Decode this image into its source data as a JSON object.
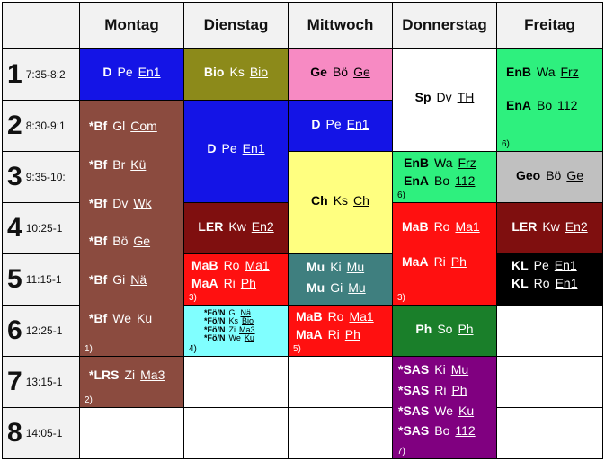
{
  "days": [
    "Montag",
    "Dienstag",
    "Mittwoch",
    "Donnerstag",
    "Freitag"
  ],
  "periods": [
    {
      "num": "1",
      "time": "7:35-8:2"
    },
    {
      "num": "2",
      "time": "8:30-9:1"
    },
    {
      "num": "3",
      "time": "9:35-10:"
    },
    {
      "num": "4",
      "time": "10:25-1"
    },
    {
      "num": "5",
      "time": "11:15-1"
    },
    {
      "num": "6",
      "time": "12:25-1"
    },
    {
      "num": "7",
      "time": "13:15-1"
    },
    {
      "num": "8",
      "time": "14:05-1"
    }
  ],
  "colors": {
    "blue": "#1414e6",
    "olive": "#8c8a1a",
    "pink": "#f78ac3",
    "green": "#2ef07e",
    "brown": "#8b4b3f",
    "yellow": "#ffff80",
    "darkred": "#7f0f0f",
    "red": "#ff1010",
    "teal": "#3f7f7f",
    "cyan": "#80ffff",
    "darkgreen": "#1a7f2a",
    "gray": "#c0c0c0",
    "black": "#000000",
    "purple": "#800080",
    "white": "#ffffff"
  },
  "cells": {
    "mo1": {
      "lines": [
        {
          "subject": "D",
          "teacher": "Pe",
          "room": "En1"
        }
      ]
    },
    "mo2": {
      "lines": [
        {
          "subject": "*Bf",
          "teacher": "Gl",
          "room": "Com"
        },
        {
          "subject": "*Bf",
          "teacher": "Br",
          "room": "Kü"
        },
        {
          "subject": "*Bf",
          "teacher": "Dv",
          "room": "Wk"
        },
        {
          "subject": "*Bf",
          "teacher": "Bö",
          "room": "Ge"
        },
        {
          "subject": "*Bf",
          "teacher": "Gi",
          "room": "Nä"
        },
        {
          "subject": "*Bf",
          "teacher": "We",
          "room": "Ku"
        }
      ],
      "footnote": "1)"
    },
    "mo7": {
      "lines": [
        {
          "subject": "*LRS",
          "teacher": "Zi",
          "room": "Ma3"
        }
      ],
      "footnote": "2)"
    },
    "di1": {
      "lines": [
        {
          "subject": "Bio",
          "teacher": "Ks",
          "room": "Bio"
        }
      ]
    },
    "di2": {
      "lines": [
        {
          "subject": "D",
          "teacher": "Pe",
          "room": "En1"
        }
      ]
    },
    "di4": {
      "lines": [
        {
          "subject": "LER",
          "teacher": "Kw",
          "room": "En2"
        }
      ]
    },
    "di5": {
      "lines": [
        {
          "subject": "MaB",
          "teacher": "Ro",
          "room": "Ma1"
        },
        {
          "subject": "MaA",
          "teacher": "Ri",
          "room": "Ph"
        }
      ],
      "footnote": "3)"
    },
    "di6": {
      "lines": [
        {
          "subject": "*Fö/N",
          "teacher": "Gi",
          "room": "Nä"
        },
        {
          "subject": "*Fö/N",
          "teacher": "Ks",
          "room": "Bio"
        },
        {
          "subject": "*Fö/N",
          "teacher": "Zi",
          "room": "Ma3"
        },
        {
          "subject": "*Fö/N",
          "teacher": "We",
          "room": "Ku"
        }
      ],
      "footnote": "4)"
    },
    "mi1": {
      "lines": [
        {
          "subject": "Ge",
          "teacher": "Bö",
          "room": "Ge"
        }
      ]
    },
    "mi2": {
      "lines": [
        {
          "subject": "D",
          "teacher": "Pe",
          "room": "En1"
        }
      ]
    },
    "mi3": {
      "lines": [
        {
          "subject": "Ch",
          "teacher": "Ks",
          "room": "Ch"
        }
      ]
    },
    "mi5": {
      "lines": [
        {
          "subject": "Mu",
          "teacher": "Ki",
          "room": "Mu"
        },
        {
          "subject": "Mu",
          "teacher": "Gi",
          "room": "Mu"
        }
      ]
    },
    "mi6": {
      "lines": [
        {
          "subject": "MaB",
          "teacher": "Ro",
          "room": "Ma1"
        },
        {
          "subject": "MaA",
          "teacher": "Ri",
          "room": "Ph"
        }
      ],
      "footnote": "5)"
    },
    "do1": {
      "lines": [
        {
          "subject": "Sp",
          "teacher": "Dv",
          "room": "TH"
        }
      ]
    },
    "do3": {
      "lines": [
        {
          "subject": "EnB",
          "teacher": "Wa",
          "room": "Frz"
        },
        {
          "subject": "EnA",
          "teacher": "Bo",
          "room": "112"
        }
      ],
      "footnote": "6)"
    },
    "do4": {
      "lines": [
        {
          "subject": "MaB",
          "teacher": "Ro",
          "room": "Ma1"
        },
        {
          "subject": "MaA",
          "teacher": "Ri",
          "room": "Ph"
        }
      ],
      "footnote": "3)"
    },
    "do6": {
      "lines": [
        {
          "subject": "Ph",
          "teacher": "So",
          "room": "Ph"
        }
      ]
    },
    "do7": {
      "lines": [
        {
          "subject": "*SAS",
          "teacher": "Ki",
          "room": "Mu"
        },
        {
          "subject": "*SAS",
          "teacher": "Ri",
          "room": "Ph"
        },
        {
          "subject": "*SAS",
          "teacher": "We",
          "room": "Ku"
        },
        {
          "subject": "*SAS",
          "teacher": "Bo",
          "room": "112"
        }
      ],
      "footnote": "7)"
    },
    "fr1": {
      "lines": [
        {
          "subject": "EnB",
          "teacher": "Wa",
          "room": "Frz"
        },
        {
          "subject": "EnA",
          "teacher": "Bo",
          "room": "112"
        }
      ],
      "footnote": "6)"
    },
    "fr3": {
      "lines": [
        {
          "subject": "Geo",
          "teacher": "Bö",
          "room": "Ge"
        }
      ]
    },
    "fr4": {
      "lines": [
        {
          "subject": "LER",
          "teacher": "Kw",
          "room": "En2"
        }
      ]
    },
    "fr5": {
      "lines": [
        {
          "subject": "KL",
          "teacher": "Pe",
          "room": "En1"
        },
        {
          "subject": "KL",
          "teacher": "Ro",
          "room": "En1"
        }
      ]
    }
  }
}
